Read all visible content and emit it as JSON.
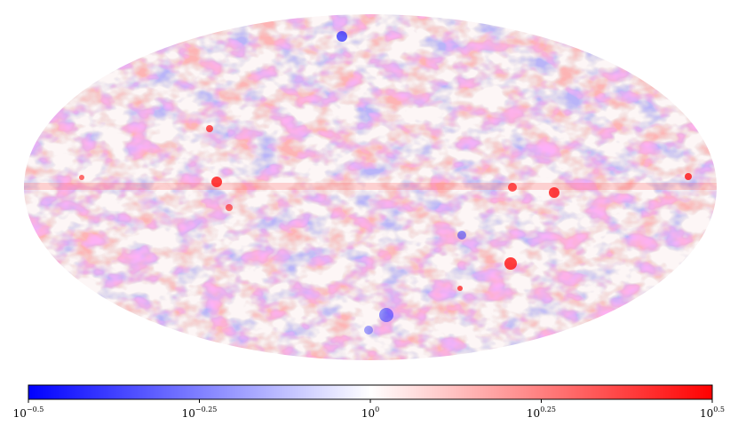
{
  "chart_data": {
    "type": "mollweide",
    "colorbar": {
      "log_scale": true,
      "colors": [
        "#0000ff",
        "#ffffff",
        "#ff0000"
      ],
      "lim": [
        0.3162,
        3.162
      ],
      "ticks": [
        {
          "value": 0.3162,
          "label": "10",
          "exponent": "−0.5"
        },
        {
          "value": 0.5623,
          "label": "10",
          "exponent": "−0.25"
        },
        {
          "value": 1,
          "label": "10",
          "exponent": "0"
        },
        {
          "value": 1.778,
          "label": "10",
          "exponent": "0.25"
        },
        {
          "value": 3.162,
          "label": "10",
          "exponent": "0.5"
        }
      ]
    }
  }
}
